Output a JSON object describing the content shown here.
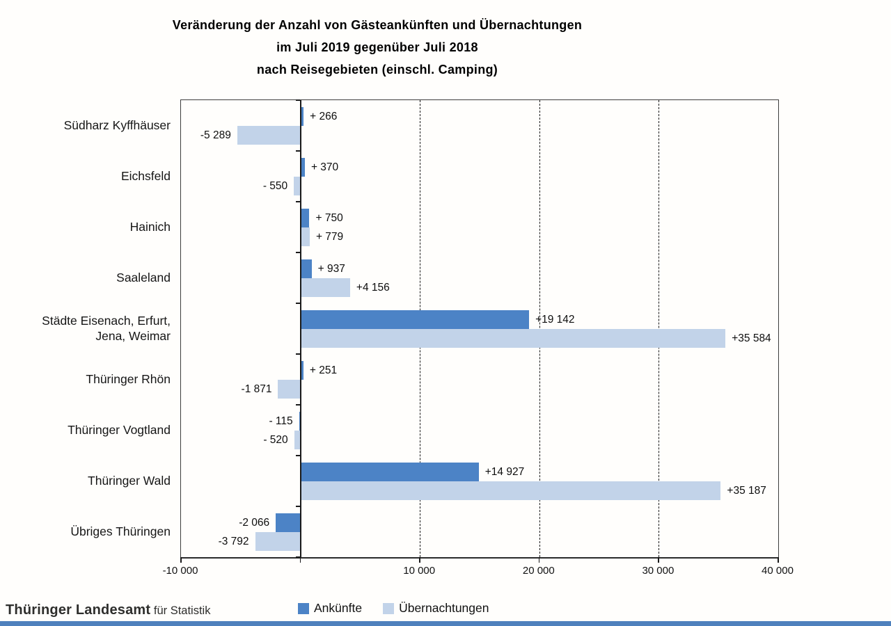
{
  "title": {
    "line1": "Veränderung der Anzahl von Gästeankünften und Übernachtungen",
    "line2": "im Juli 2019 gegenüber Juli 2018",
    "line3": "nach Reisegebieten (einschl. Camping)"
  },
  "chart_data": {
    "type": "bar",
    "orientation": "horizontal",
    "categories": [
      "Südharz Kyffhäuser",
      "Eichsfeld",
      "Hainich",
      "Saaleland",
      "Städte Eisenach, Erfurt,\nJena, Weimar",
      "Thüringer Rhön",
      "Thüringer Vogtland",
      "Thüringer Wald",
      "Übriges Thüringen"
    ],
    "series": [
      {
        "name": "Ankünfte",
        "color": "#4c83c6",
        "values": [
          266,
          370,
          750,
          937,
          19142,
          251,
          -115,
          14927,
          -2066
        ],
        "labels": [
          "+ 266",
          "+ 370",
          "+ 750",
          "+ 937",
          "+19 142",
          "+ 251",
          "- 115",
          "+14 927",
          "-2 066"
        ]
      },
      {
        "name": "Übernachtungen",
        "color": "#c2d3e9",
        "values": [
          -5289,
          -550,
          779,
          4156,
          35584,
          -1871,
          -520,
          35187,
          -3792
        ],
        "labels": [
          "-5 289",
          "- 550",
          "+ 779",
          "+4 156",
          "+35 584",
          "-1 871",
          "- 520",
          "+35 187",
          "-3 792"
        ]
      }
    ],
    "xlim": [
      -10000,
      40000
    ],
    "x_ticks": [
      {
        "value": -10000,
        "label": "-10 000"
      },
      {
        "value": 0,
        "label": ""
      },
      {
        "value": 10000,
        "label": "10 000"
      },
      {
        "value": 20000,
        "label": "20 000"
      },
      {
        "value": 30000,
        "label": "30 000"
      },
      {
        "value": 40000,
        "label": "40 000"
      }
    ],
    "gridlines": [
      10000,
      20000,
      30000
    ],
    "grid": "vertical-dashed",
    "legend_position": "bottom"
  },
  "legend": {
    "items": [
      {
        "label": "Ankünfte",
        "color": "#4c83c6"
      },
      {
        "label": "Übernachtungen",
        "color": "#c2d3e9"
      }
    ]
  },
  "footer": {
    "org_bold": "Thüringer Landesamt",
    "org_rest": " für Statistik"
  },
  "colors": {
    "accent_bar": "#4f81bd",
    "axis": "#1a1a1a",
    "background": "#fffefc"
  }
}
